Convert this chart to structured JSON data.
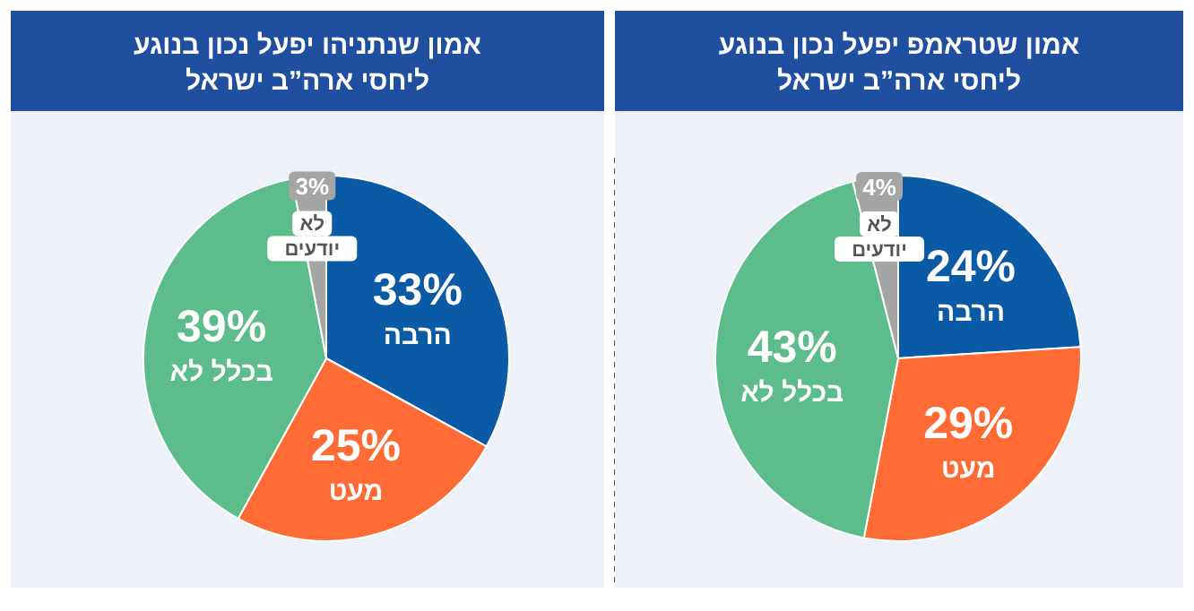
{
  "chart_data": [
    {
      "type": "pie",
      "title": "אמון שטראמפ יפעל נכון בנוגע\nליחסי ארה”ב ישראל",
      "categories": [
        "הרבה",
        "מעט",
        "בכלל לא",
        "לא\nיודעים"
      ],
      "values": [
        24,
        29,
        43,
        4
      ],
      "value_labels": [
        "24%",
        "29%",
        "43%",
        "4%"
      ],
      "colors": [
        "#0b5aa6",
        "#ff6b35",
        "#5cbc8b",
        "#a5a5a5"
      ]
    },
    {
      "type": "pie",
      "title": "אמון שנתניהו יפעל נכון בנוגע\nליחסי ארה”ב ישראל",
      "categories": [
        "הרבה",
        "מעט",
        "בכלל לא",
        "לא\nיודעים"
      ],
      "values": [
        33,
        25,
        39,
        3
      ],
      "value_labels": [
        "33%",
        "25%",
        "39%",
        "3%"
      ],
      "colors": [
        "#0b5aa6",
        "#ff6b35",
        "#5cbc8b",
        "#a5a5a5"
      ]
    }
  ]
}
